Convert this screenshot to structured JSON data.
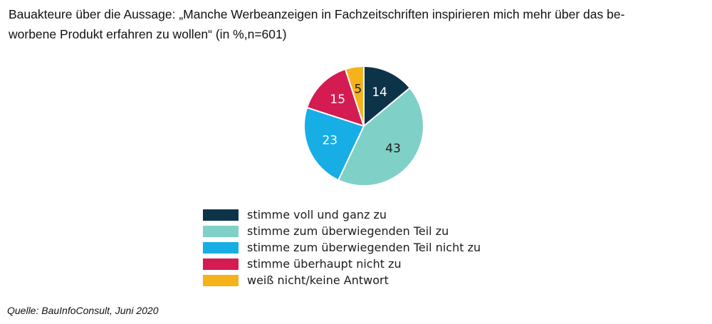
{
  "chart_data": {
    "type": "pie",
    "title_lines": [
      "Bauakteure über die Aussage: „Manche Werbeanzeigen in Fachzeitschriften inspirieren mich mehr über das be-",
      "worbene Produkt erfahren zu wollen“ (in %,n=601)"
    ],
    "slices": [
      {
        "label": "stimme voll und ganz zu",
        "value": 14,
        "color": "#0d3349"
      },
      {
        "label": "stimme zum überwiegenden Teil zu",
        "value": 43,
        "color": "#7fd0c6"
      },
      {
        "label": "stimme zum überwiegenden Teil nicht zu",
        "value": 23,
        "color": "#17aee6"
      },
      {
        "label": "stimme überhaupt nicht zu",
        "value": 15,
        "color": "#d41c52"
      },
      {
        "label": "weiß nicht/keine Antwort",
        "value": 5,
        "color": "#f6b21b"
      }
    ],
    "legend_position": "bottom",
    "start_angle_deg": 0,
    "direction": "clockwise"
  },
  "source": "Quelle: BauInfoConsult, Juni 2020"
}
